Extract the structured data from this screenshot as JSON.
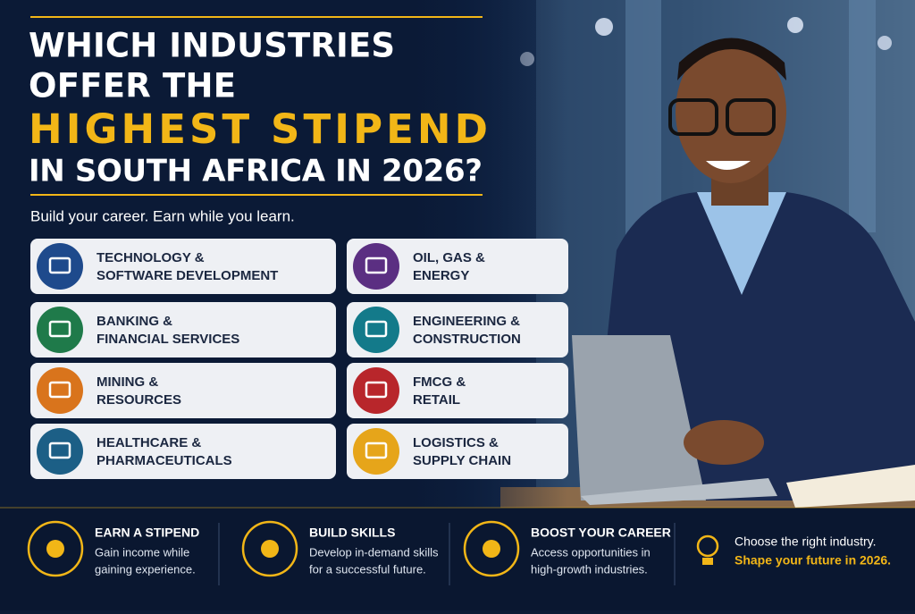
{
  "header": {
    "title_lines": [
      "WHICH INDUSTRIES",
      "OFFER THE",
      "HIGHEST STIPEND",
      "IN SOUTH AFRICA IN 2026?"
    ],
    "subtitle": "Build your career. Earn while you learn."
  },
  "industries": [
    {
      "lines": [
        "TECHNOLOGY &",
        "SOFTWARE DEVELOPMENT"
      ]
    },
    {
      "lines": [
        "BANKING &",
        "FINANCIAL SERVICES"
      ]
    },
    {
      "lines": [
        "MINING &",
        "RESOURCES"
      ]
    },
    {
      "lines": [
        "HEALTHCARE &",
        "PHARMACEUTICALS"
      ]
    },
    {
      "lines": [
        "OIL, GAS &",
        "ENERGY"
      ]
    },
    {
      "lines": [
        "ENGINEERING &",
        "CONSTRUCTION"
      ]
    },
    {
      "lines": [
        "FMCG &",
        "RETAIL"
      ]
    },
    {
      "lines": [
        "LOGISTICS &",
        "SUPPLY CHAIN"
      ]
    }
  ],
  "footer": {
    "items": [
      {
        "title": "EARN A STIPEND",
        "lines": [
          "Gain income while",
          "gaining experience."
        ]
      },
      {
        "title": "BUILD SKILLS",
        "lines": [
          "Develop in-demand skills",
          "for a successful future."
        ]
      },
      {
        "title": "BOOST YOUR CAREER",
        "lines": [
          "Access opportunities in",
          "high-growth industries."
        ]
      }
    ],
    "closing": [
      "Choose the right industry.",
      "Shape your future in 2026."
    ]
  }
}
